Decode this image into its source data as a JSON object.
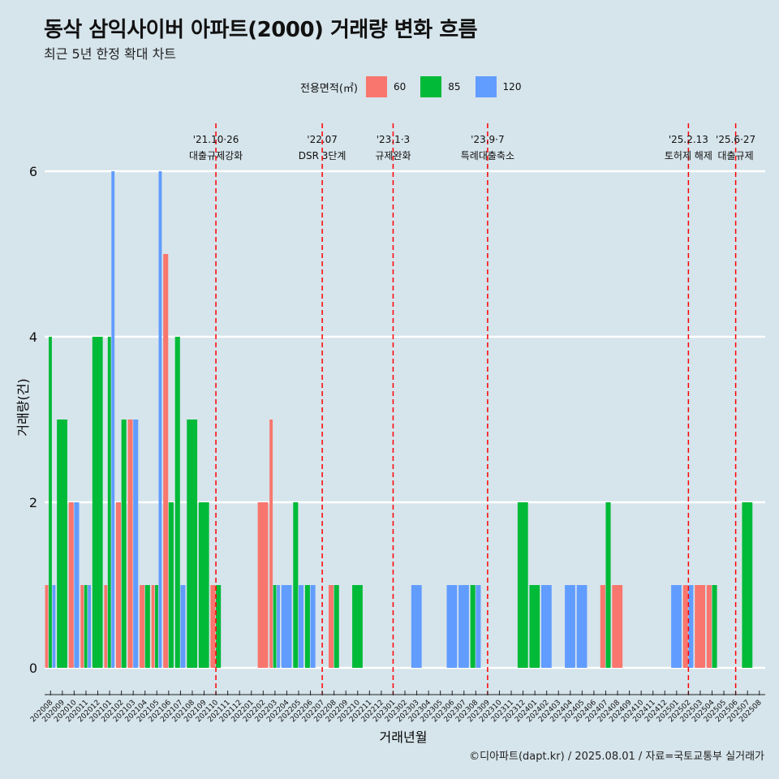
{
  "title": "동삭 삼익사이버 아파트(2000) 거래량 변화 흐름",
  "subtitle": "최근 5년 한정 확대 차트",
  "caption": "©디아파트(dapt.kr) / 2025.08.01 / 자료=국토교통부 실거래가",
  "legend": {
    "title": "전용면적(㎡)",
    "items": [
      {
        "label": "60",
        "color": "#f8766d"
      },
      {
        "label": "85",
        "color": "#00ba38"
      },
      {
        "label": "120",
        "color": "#619cff"
      }
    ]
  },
  "chart_data": {
    "type": "bar",
    "xlabel": "거래년월",
    "ylabel": "거래량(건)",
    "ylim": [
      0,
      6
    ],
    "yticks": [
      0,
      2,
      4,
      6
    ],
    "grid": "horizontal",
    "categories": [
      "202008",
      "202009",
      "202010",
      "202011",
      "202012",
      "202101",
      "202102",
      "202103",
      "202104",
      "202105",
      "202106",
      "202107",
      "202108",
      "202109",
      "202110",
      "202111",
      "202112",
      "202201",
      "202202",
      "202203",
      "202204",
      "202205",
      "202206",
      "202207",
      "202208",
      "202209",
      "202210",
      "202211",
      "202212",
      "202301",
      "202302",
      "202303",
      "202304",
      "202305",
      "202306",
      "202307",
      "202308",
      "202309",
      "202310",
      "202311",
      "202312",
      "202401",
      "202402",
      "202403",
      "202404",
      "202405",
      "202406",
      "202407",
      "202408",
      "202409",
      "202410",
      "202411",
      "202412",
      "202501",
      "202502",
      "202503",
      "202504",
      "202505",
      "202506",
      "202507",
      "202508"
    ],
    "series": [
      {
        "name": "60",
        "color": "#f8766d",
        "values": [
          1,
          0,
          2,
          1,
          0,
          1,
          2,
          3,
          1,
          1,
          5,
          0,
          0,
          0,
          1,
          0,
          0,
          0,
          2,
          3,
          0,
          0,
          0,
          0,
          1,
          0,
          0,
          0,
          0,
          0,
          0,
          0,
          0,
          0,
          0,
          0,
          0,
          0,
          0,
          0,
          0,
          0,
          0,
          0,
          0,
          0,
          0,
          1,
          1,
          0,
          0,
          0,
          0,
          0,
          1,
          1,
          1,
          0,
          0,
          0,
          0
        ]
      },
      {
        "name": "85",
        "color": "#00ba38",
        "values": [
          4,
          3,
          0,
          1,
          4,
          4,
          3,
          0,
          1,
          1,
          2,
          4,
          3,
          2,
          1,
          0,
          0,
          0,
          0,
          1,
          0,
          2,
          1,
          0,
          1,
          0,
          1,
          0,
          0,
          0,
          0,
          0,
          0,
          0,
          0,
          0,
          1,
          0,
          0,
          0,
          2,
          1,
          0,
          0,
          0,
          0,
          0,
          2,
          0,
          0,
          0,
          0,
          0,
          0,
          0,
          0,
          1,
          0,
          0,
          2,
          0
        ]
      },
      {
        "name": "120",
        "color": "#619cff",
        "values": [
          1,
          0,
          2,
          1,
          0,
          6,
          0,
          3,
          0,
          6,
          0,
          1,
          0,
          0,
          0,
          0,
          0,
          0,
          0,
          1,
          1,
          1,
          1,
          0,
          0,
          0,
          0,
          0,
          0,
          0,
          0,
          1,
          0,
          0,
          1,
          1,
          1,
          0,
          0,
          0,
          0,
          0,
          1,
          0,
          1,
          1,
          0,
          0,
          0,
          0,
          0,
          0,
          0,
          1,
          1,
          0,
          0,
          0,
          0,
          0,
          0
        ]
      }
    ],
    "annotations": [
      {
        "date": "'21.10·26",
        "label": "대출규제강화",
        "month": "202110"
      },
      {
        "date": "'22.07",
        "label": "DSR 3단계",
        "month": "202207"
      },
      {
        "date": "'23.1·3",
        "label": "규제완화",
        "month": "202301"
      },
      {
        "date": "'23.9·7",
        "label": "특례대출축소",
        "month": "202309"
      },
      {
        "date": "'25.2.13",
        "label": "토허제 해제",
        "month": "202502"
      },
      {
        "date": "'25.6·27",
        "label": "대출규제",
        "month": "202506"
      }
    ]
  }
}
